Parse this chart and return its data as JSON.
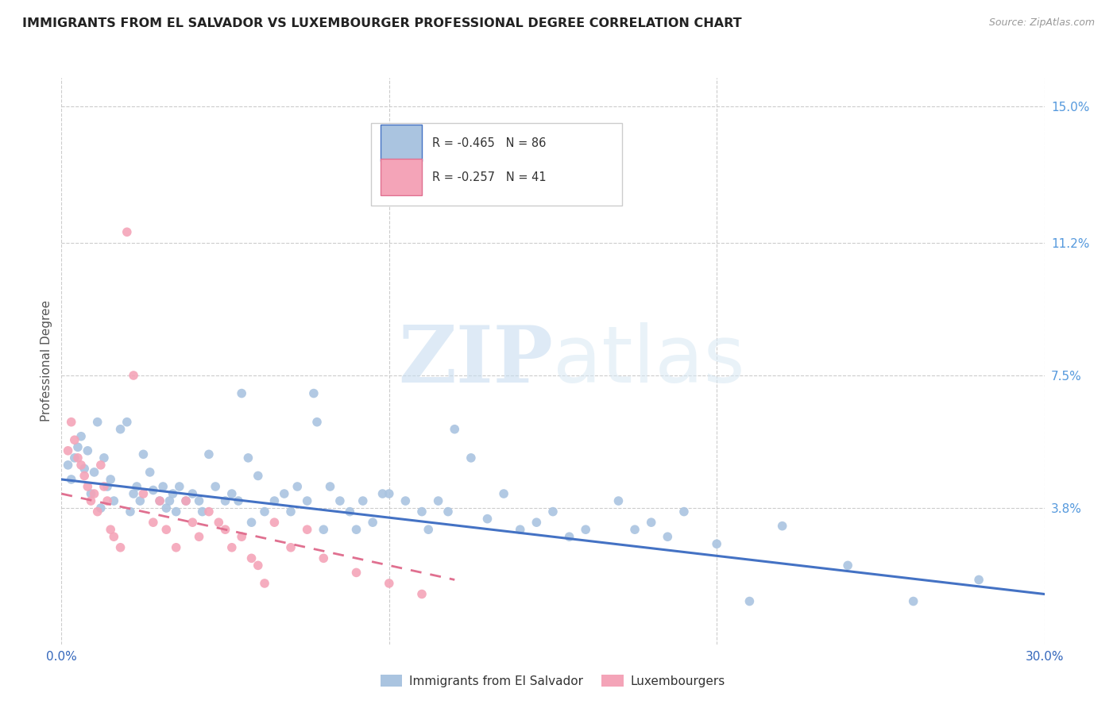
{
  "title": "IMMIGRANTS FROM EL SALVADOR VS LUXEMBOURGER PROFESSIONAL DEGREE CORRELATION CHART",
  "source": "Source: ZipAtlas.com",
  "ylabel": "Professional Degree",
  "xlim": [
    0.0,
    0.3
  ],
  "ylim": [
    0.0,
    0.158
  ],
  "ytick_labels_right": [
    "15.0%",
    "11.2%",
    "7.5%",
    "3.8%"
  ],
  "ytick_values_right": [
    0.15,
    0.112,
    0.075,
    0.038
  ],
  "color_blue": "#aac4e0",
  "color_pink": "#f4a4b8",
  "line_color_blue": "#4472c4",
  "line_color_pink": "#e07090",
  "R_blue": -0.465,
  "N_blue": 86,
  "R_pink": -0.257,
  "N_pink": 41,
  "legend_label_blue": "Immigrants from El Salvador",
  "legend_label_pink": "Luxembourgers",
  "watermark_zip": "ZIP",
  "watermark_atlas": "atlas",
  "blue_scatter": [
    [
      0.002,
      0.05
    ],
    [
      0.003,
      0.046
    ],
    [
      0.004,
      0.052
    ],
    [
      0.005,
      0.055
    ],
    [
      0.006,
      0.058
    ],
    [
      0.007,
      0.049
    ],
    [
      0.008,
      0.054
    ],
    [
      0.009,
      0.042
    ],
    [
      0.01,
      0.048
    ],
    [
      0.011,
      0.062
    ],
    [
      0.012,
      0.038
    ],
    [
      0.013,
      0.052
    ],
    [
      0.014,
      0.044
    ],
    [
      0.015,
      0.046
    ],
    [
      0.016,
      0.04
    ],
    [
      0.018,
      0.06
    ],
    [
      0.02,
      0.062
    ],
    [
      0.021,
      0.037
    ],
    [
      0.022,
      0.042
    ],
    [
      0.023,
      0.044
    ],
    [
      0.024,
      0.04
    ],
    [
      0.025,
      0.053
    ],
    [
      0.027,
      0.048
    ],
    [
      0.028,
      0.043
    ],
    [
      0.03,
      0.04
    ],
    [
      0.031,
      0.044
    ],
    [
      0.032,
      0.038
    ],
    [
      0.033,
      0.04
    ],
    [
      0.034,
      0.042
    ],
    [
      0.035,
      0.037
    ],
    [
      0.036,
      0.044
    ],
    [
      0.038,
      0.04
    ],
    [
      0.04,
      0.042
    ],
    [
      0.042,
      0.04
    ],
    [
      0.043,
      0.037
    ],
    [
      0.045,
      0.053
    ],
    [
      0.047,
      0.044
    ],
    [
      0.05,
      0.04
    ],
    [
      0.052,
      0.042
    ],
    [
      0.054,
      0.04
    ],
    [
      0.055,
      0.07
    ],
    [
      0.057,
      0.052
    ],
    [
      0.058,
      0.034
    ],
    [
      0.06,
      0.047
    ],
    [
      0.062,
      0.037
    ],
    [
      0.065,
      0.04
    ],
    [
      0.068,
      0.042
    ],
    [
      0.07,
      0.037
    ],
    [
      0.072,
      0.044
    ],
    [
      0.075,
      0.04
    ],
    [
      0.077,
      0.07
    ],
    [
      0.078,
      0.062
    ],
    [
      0.08,
      0.032
    ],
    [
      0.082,
      0.044
    ],
    [
      0.085,
      0.04
    ],
    [
      0.088,
      0.037
    ],
    [
      0.09,
      0.032
    ],
    [
      0.092,
      0.04
    ],
    [
      0.095,
      0.034
    ],
    [
      0.098,
      0.042
    ],
    [
      0.1,
      0.042
    ],
    [
      0.105,
      0.04
    ],
    [
      0.11,
      0.037
    ],
    [
      0.112,
      0.032
    ],
    [
      0.115,
      0.04
    ],
    [
      0.118,
      0.037
    ],
    [
      0.12,
      0.06
    ],
    [
      0.125,
      0.052
    ],
    [
      0.13,
      0.035
    ],
    [
      0.135,
      0.042
    ],
    [
      0.14,
      0.032
    ],
    [
      0.145,
      0.034
    ],
    [
      0.15,
      0.037
    ],
    [
      0.155,
      0.03
    ],
    [
      0.16,
      0.032
    ],
    [
      0.17,
      0.04
    ],
    [
      0.175,
      0.032
    ],
    [
      0.18,
      0.034
    ],
    [
      0.185,
      0.03
    ],
    [
      0.19,
      0.037
    ],
    [
      0.2,
      0.028
    ],
    [
      0.21,
      0.012
    ],
    [
      0.22,
      0.033
    ],
    [
      0.24,
      0.022
    ],
    [
      0.26,
      0.012
    ],
    [
      0.28,
      0.018
    ]
  ],
  "pink_scatter": [
    [
      0.002,
      0.054
    ],
    [
      0.003,
      0.062
    ],
    [
      0.004,
      0.057
    ],
    [
      0.005,
      0.052
    ],
    [
      0.006,
      0.05
    ],
    [
      0.007,
      0.047
    ],
    [
      0.008,
      0.044
    ],
    [
      0.009,
      0.04
    ],
    [
      0.01,
      0.042
    ],
    [
      0.011,
      0.037
    ],
    [
      0.012,
      0.05
    ],
    [
      0.013,
      0.044
    ],
    [
      0.014,
      0.04
    ],
    [
      0.015,
      0.032
    ],
    [
      0.016,
      0.03
    ],
    [
      0.018,
      0.027
    ],
    [
      0.02,
      0.115
    ],
    [
      0.022,
      0.075
    ],
    [
      0.025,
      0.042
    ],
    [
      0.028,
      0.034
    ],
    [
      0.03,
      0.04
    ],
    [
      0.032,
      0.032
    ],
    [
      0.035,
      0.027
    ],
    [
      0.038,
      0.04
    ],
    [
      0.04,
      0.034
    ],
    [
      0.042,
      0.03
    ],
    [
      0.045,
      0.037
    ],
    [
      0.048,
      0.034
    ],
    [
      0.05,
      0.032
    ],
    [
      0.052,
      0.027
    ],
    [
      0.055,
      0.03
    ],
    [
      0.058,
      0.024
    ],
    [
      0.06,
      0.022
    ],
    [
      0.062,
      0.017
    ],
    [
      0.065,
      0.034
    ],
    [
      0.07,
      0.027
    ],
    [
      0.075,
      0.032
    ],
    [
      0.08,
      0.024
    ],
    [
      0.09,
      0.02
    ],
    [
      0.1,
      0.017
    ],
    [
      0.11,
      0.014
    ]
  ],
  "blue_line_x": [
    0.0,
    0.3
  ],
  "blue_line_y": [
    0.046,
    0.014
  ],
  "pink_line_x": [
    0.0,
    0.12
  ],
  "pink_line_y": [
    0.042,
    0.018
  ]
}
